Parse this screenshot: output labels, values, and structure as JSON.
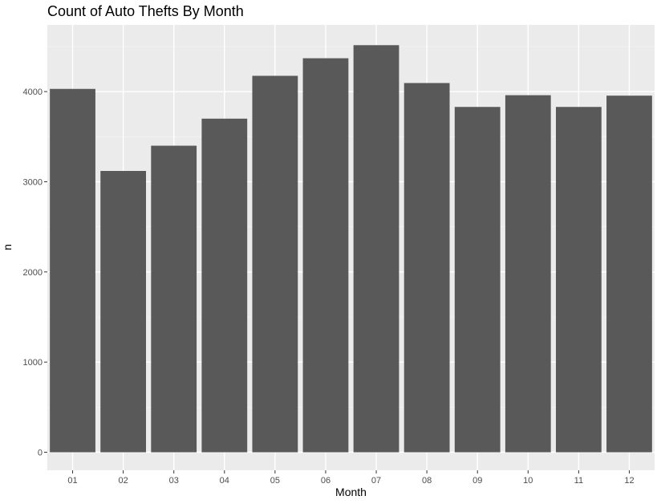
{
  "chart_data": {
    "type": "bar",
    "title": "Count of Auto Thefts By Month",
    "xlabel": "Month",
    "ylabel": "n",
    "categories": [
      "01",
      "02",
      "03",
      "04",
      "05",
      "06",
      "07",
      "08",
      "09",
      "10",
      "11",
      "12"
    ],
    "values": [
      4030,
      3120,
      3400,
      3700,
      4175,
      4370,
      4515,
      4095,
      3830,
      3960,
      3830,
      3955
    ],
    "ylim": [
      -200,
      4740
    ],
    "yticks": [
      0,
      1000,
      2000,
      3000,
      4000
    ],
    "grid": true,
    "legend": "none",
    "colors": {
      "bar": "#595959",
      "panel": "#ebebeb",
      "grid_major": "#ffffff",
      "grid_minor": "#f4f4f4",
      "axis_text": "#4d4d4d",
      "tick": "#333333"
    }
  }
}
